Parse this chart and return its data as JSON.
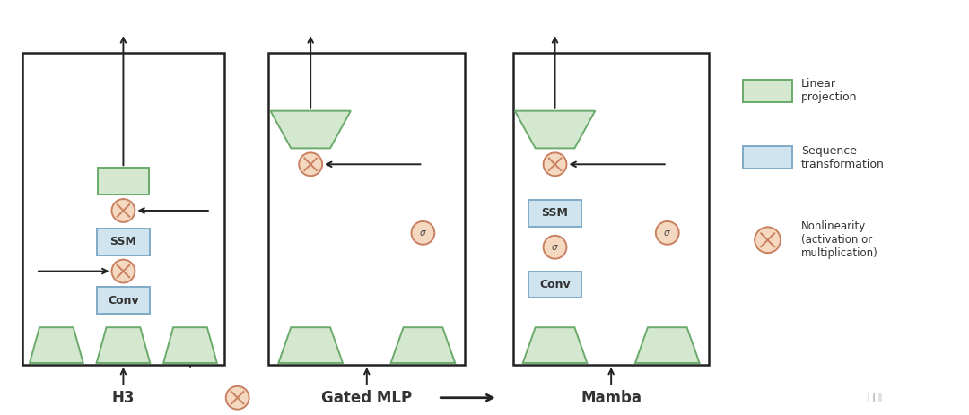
{
  "bg_color": "#ffffff",
  "green_fill": "#d4e8d0",
  "green_edge": "#6aaa6a",
  "blue_fill": "#d0e4f0",
  "blue_edge": "#80aac8",
  "nonlin_fill": "#f5d8c0",
  "nonlin_edge": "#c88060",
  "box_edge": "#222222",
  "label_h3": "H3",
  "label_gmlp": "Gated MLP",
  "label_mamba": "Mamba",
  "legend_linear": "Linear\nprojection",
  "legend_seq": "Sequence\ntransformation",
  "legend_nonlin": "Nonlinearity\n(activation or\nmultiplication)"
}
